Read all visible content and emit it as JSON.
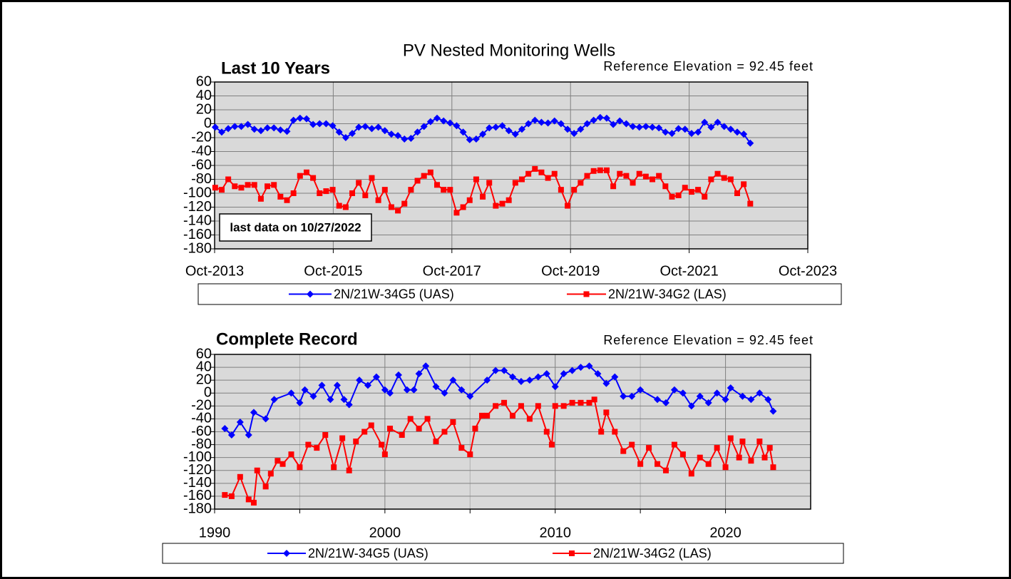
{
  "title": "PV Nested Monitoring Wells",
  "chart_data": [
    {
      "type": "line",
      "subtitle": "Last 10 Years",
      "annotations": [
        "Reference Elevation = 92.45 feet",
        "last data on 10/27/2022"
      ],
      "xlim": [
        2013.75,
        2023.75
      ],
      "xticks": [
        {
          "value": 2013.75,
          "label": "Oct-2013"
        },
        {
          "value": 2015.75,
          "label": "Oct-2015"
        },
        {
          "value": 2017.75,
          "label": "Oct-2017"
        },
        {
          "value": 2019.75,
          "label": "Oct-2019"
        },
        {
          "value": 2021.75,
          "label": "Oct-2021"
        },
        {
          "value": 2023.75,
          "label": "Oct-2023"
        }
      ],
      "ylim": [
        -180,
        60
      ],
      "yticks": [
        -180,
        -160,
        -140,
        -120,
        -100,
        -80,
        -60,
        -40,
        -20,
        0,
        20,
        40,
        60
      ],
      "grid": true,
      "legend": "bottom",
      "x": [
        2013.76,
        2013.87,
        2013.98,
        2014.09,
        2014.2,
        2014.31,
        2014.42,
        2014.53,
        2014.64,
        2014.75,
        2014.86,
        2014.97,
        2015.08,
        2015.19,
        2015.3,
        2015.41,
        2015.52,
        2015.63,
        2015.74,
        2015.85,
        2015.96,
        2016.07,
        2016.18,
        2016.29,
        2016.4,
        2016.51,
        2016.62,
        2016.73,
        2016.84,
        2016.95,
        2017.06,
        2017.17,
        2017.28,
        2017.39,
        2017.5,
        2017.61,
        2017.72,
        2017.83,
        2017.94,
        2018.05,
        2018.16,
        2018.27,
        2018.38,
        2018.49,
        2018.6,
        2018.71,
        2018.82,
        2018.93,
        2019.04,
        2019.15,
        2019.26,
        2019.37,
        2019.48,
        2019.59,
        2019.7,
        2019.81,
        2019.92,
        2020.03,
        2020.14,
        2020.25,
        2020.36,
        2020.47,
        2020.58,
        2020.69,
        2020.8,
        2020.91,
        2021.02,
        2021.13,
        2021.24,
        2021.35,
        2021.46,
        2021.57,
        2021.68,
        2021.79,
        2021.9,
        2022.01,
        2022.12,
        2022.23,
        2022.34,
        2022.45,
        2022.56,
        2022.67,
        2022.78
      ],
      "series": [
        {
          "name": "2N/21W-34G5 (UAS)",
          "color": "#0000ff",
          "marker": "diamond",
          "values": [
            -5,
            -12,
            -7,
            -4,
            -4,
            -1,
            -8,
            -10,
            -6,
            -6,
            -9,
            -11,
            5,
            8,
            7,
            -1,
            0,
            0,
            -3,
            -12,
            -20,
            -14,
            -5,
            -4,
            -7,
            -5,
            -10,
            -15,
            -17,
            -22,
            -21,
            -12,
            -4,
            3,
            8,
            4,
            1,
            -3,
            -12,
            -23,
            -22,
            -15,
            -6,
            -5,
            -3,
            -10,
            -15,
            -8,
            0,
            5,
            2,
            1,
            4,
            0,
            -8,
            -14,
            -8,
            0,
            5,
            9,
            8,
            -1,
            4,
            0,
            -4,
            -5,
            -4,
            -5,
            -6,
            -12,
            -14,
            -7,
            -8,
            -14,
            -12,
            2,
            -5,
            2,
            -4,
            -8,
            -12,
            -15,
            -28
          ]
        },
        {
          "name": "2N/21W-34G2 (LAS)",
          "color": "#ff0000",
          "marker": "square",
          "values": [
            -92,
            -95,
            -80,
            -90,
            -92,
            -88,
            -88,
            -108,
            -90,
            -88,
            -105,
            -110,
            -100,
            -75,
            -70,
            -78,
            -100,
            -97,
            -95,
            -118,
            -120,
            -100,
            -85,
            -103,
            -78,
            -110,
            -95,
            -120,
            -125,
            -115,
            -95,
            -82,
            -75,
            -70,
            -88,
            -95,
            -95,
            -128,
            -120,
            -110,
            -80,
            -105,
            -85,
            -118,
            -115,
            -110,
            -85,
            -80,
            -72,
            -65,
            -70,
            -78,
            -72,
            -95,
            -118,
            -95,
            -85,
            -75,
            -68,
            -67,
            -67,
            -90,
            -72,
            -75,
            -85,
            -72,
            -76,
            -80,
            -75,
            -90,
            -105,
            -103,
            -92,
            -98,
            -95,
            -105,
            -80,
            -72,
            -78,
            -80,
            -100,
            -87,
            -115
          ]
        }
      ]
    },
    {
      "type": "line",
      "subtitle": "Complete Record",
      "annotations": [
        "Reference Elevation = 92.45 feet"
      ],
      "xlim": [
        1990,
        2025
      ],
      "xticks": [
        1990,
        2000,
        2010,
        2020
      ],
      "xgrid": [
        1995,
        2005,
        2015
      ],
      "ylim": [
        -180,
        60
      ],
      "yticks": [
        -180,
        -160,
        -140,
        -120,
        -100,
        -80,
        -60,
        -40,
        -20,
        0,
        20,
        40,
        60
      ],
      "grid": true,
      "legend": "bottom",
      "series": [
        {
          "name": "2N/21W-34G5 (UAS)",
          "color": "#0000ff",
          "marker": "diamond",
          "x": [
            1990.6,
            1991,
            1991.5,
            1992,
            1992.3,
            1993,
            1993.5,
            1994.5,
            1995,
            1995.3,
            1995.8,
            1996.3,
            1996.8,
            1997.2,
            1997.6,
            1997.9,
            1998.5,
            1999,
            1999.5,
            2000,
            2000.3,
            2000.8,
            2001.3,
            2001.7,
            2002,
            2002.4,
            2003,
            2003.5,
            2004,
            2004.5,
            2005,
            2006,
            2006.5,
            2007,
            2007.5,
            2008,
            2008.5,
            2009,
            2009.5,
            2010,
            2010.5,
            2011,
            2011.5,
            2012,
            2012.5,
            2013,
            2013.5,
            2014,
            2014.5,
            2015,
            2016,
            2016.5,
            2017,
            2017.5,
            2018,
            2018.5,
            2019,
            2019.5,
            2020,
            2020.3,
            2021,
            2021.5,
            2022,
            2022.5,
            2022.8
          ],
          "values": [
            -55,
            -65,
            -45,
            -65,
            -30,
            -40,
            -10,
            0,
            -15,
            5,
            -5,
            12,
            -10,
            12,
            -10,
            -18,
            20,
            12,
            25,
            5,
            0,
            28,
            5,
            5,
            30,
            42,
            10,
            0,
            20,
            5,
            -5,
            20,
            35,
            35,
            25,
            18,
            20,
            25,
            30,
            10,
            30,
            35,
            40,
            42,
            30,
            15,
            25,
            -5,
            -5,
            5,
            -10,
            -15,
            5,
            0,
            -20,
            -5,
            -15,
            0,
            -10,
            8,
            -5,
            -10,
            0,
            -10,
            -28
          ]
        },
        {
          "name": "2N/21W-34G2 (LAS)",
          "color": "#ff0000",
          "marker": "square",
          "x": [
            1990.6,
            1991,
            1991.5,
            1992,
            1992.3,
            1992.5,
            1993,
            1993.3,
            1993.7,
            1994,
            1994.5,
            1995,
            1995.5,
            1996,
            1996.5,
            1997,
            1997.5,
            1997.9,
            1998.3,
            1998.8,
            1999.2,
            1999.8,
            2000,
            2000.3,
            2001,
            2001.5,
            2002,
            2002.5,
            2003,
            2003.5,
            2004,
            2004.5,
            2005,
            2005.3,
            2005.7,
            2006,
            2006.5,
            2007,
            2007.5,
            2008,
            2008.5,
            2009,
            2009.5,
            2009.8,
            2010,
            2010.5,
            2011,
            2011.5,
            2012,
            2012.3,
            2012.7,
            2013,
            2013.5,
            2014,
            2014.5,
            2015,
            2015.5,
            2016,
            2016.5,
            2017,
            2017.5,
            2018,
            2018.5,
            2019,
            2019.5,
            2020,
            2020.3,
            2020.8,
            2021,
            2021.5,
            2022,
            2022.3,
            2022.6,
            2022.8
          ],
          "values": [
            -158,
            -160,
            -130,
            -165,
            -170,
            -120,
            -145,
            -125,
            -105,
            -110,
            -95,
            -115,
            -80,
            -85,
            -65,
            -115,
            -70,
            -120,
            -75,
            -60,
            -50,
            -80,
            -95,
            -55,
            -65,
            -40,
            -55,
            -40,
            -75,
            -60,
            -45,
            -85,
            -95,
            -55,
            -35,
            -35,
            -20,
            -15,
            -35,
            -20,
            -40,
            -20,
            -60,
            -80,
            -20,
            -20,
            -15,
            -15,
            -15,
            -10,
            -60,
            -30,
            -60,
            -90,
            -80,
            -110,
            -85,
            -110,
            -120,
            -80,
            -95,
            -125,
            -100,
            -110,
            -85,
            -115,
            -70,
            -100,
            -75,
            -105,
            -75,
            -100,
            -85,
            -115
          ]
        }
      ]
    }
  ]
}
